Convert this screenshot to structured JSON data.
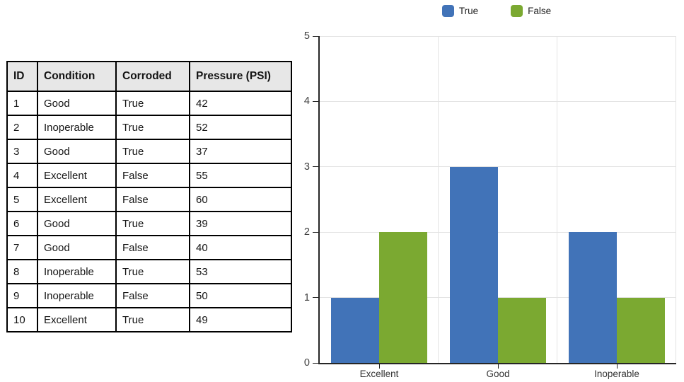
{
  "table": {
    "headers": [
      "ID",
      "Condition",
      "Corroded",
      "Pressure (PSI)"
    ],
    "rows": [
      [
        "1",
        "Good",
        "True",
        "42"
      ],
      [
        "2",
        "Inoperable",
        "True",
        "52"
      ],
      [
        "3",
        "Good",
        "True",
        "37"
      ],
      [
        "4",
        "Excellent",
        "False",
        "55"
      ],
      [
        "5",
        "Excellent",
        "False",
        "60"
      ],
      [
        "6",
        "Good",
        "True",
        "39"
      ],
      [
        "7",
        "Good",
        "False",
        "40"
      ],
      [
        "8",
        "Inoperable",
        "True",
        "53"
      ],
      [
        "9",
        "Inoperable",
        "False",
        "50"
      ],
      [
        "10",
        "Excellent",
        "True",
        "49"
      ]
    ]
  },
  "chart_data": {
    "type": "bar",
    "categories": [
      "Excellent",
      "Good",
      "Inoperable"
    ],
    "series": [
      {
        "name": "True",
        "color": "#4173B8",
        "values": [
          1,
          3,
          2
        ]
      },
      {
        "name": "False",
        "color": "#7BA931",
        "values": [
          2,
          1,
          1
        ]
      }
    ],
    "title": "",
    "xlabel": "",
    "ylabel": "",
    "ylim": [
      0,
      5
    ],
    "yticks": [
      0,
      1,
      2,
      3,
      4,
      5
    ],
    "grid": true,
    "legend_position": "top",
    "legend": [
      "True",
      "False"
    ]
  },
  "colors": {
    "series_true": "#4173B8",
    "series_false": "#7BA931",
    "gridline": "#e3e3e3",
    "axis": "#262626",
    "tick_label": "#404040",
    "table_header_bg": "#e7e7e7",
    "table_border": "#000000"
  }
}
